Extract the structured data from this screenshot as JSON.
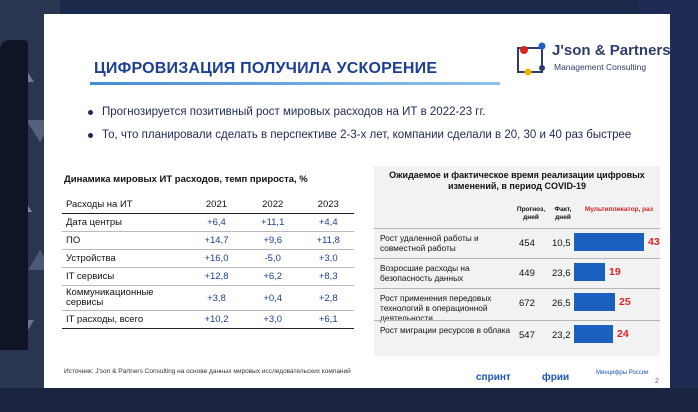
{
  "slide": {
    "title": "ЦИФРОВИЗАЦИЯ ПОЛУЧИЛА УСКОРЕНИЕ",
    "logo": {
      "name": "J'son & Partners",
      "subtitle": "Management Consulting"
    },
    "bullets": [
      "Прогнозируется позитивный рост мировых расходов на ИТ в 2022-23 гг.",
      "То, что планировали сделать в перспективе 2-3-х лет, компании сделали в 20, 30 и 40 раз быстрее"
    ],
    "table": {
      "title": "Динамика мировых ИТ расходов, темп прироста, %",
      "header": [
        "Расходы на ИТ",
        "2021",
        "2022",
        "2023"
      ],
      "rows": [
        [
          "Дата центры",
          "+6,4",
          "+11,1",
          "+4,4"
        ],
        [
          "ПО",
          "+14,7",
          "+9,6",
          "+11,8"
        ],
        [
          "Устройства",
          "+16,0",
          "-5,0",
          "+3,0"
        ],
        [
          "IT сервисы",
          "+12,8",
          "+6,2",
          "+8,3"
        ],
        [
          "Коммуникационные сервисы",
          "+3,8",
          "+0,4",
          "+2,8"
        ],
        [
          "IT расходы, всего",
          "+10,2",
          "+3,0",
          "+6,1"
        ]
      ]
    },
    "panel": {
      "title": "Ожидаемое и фактическое время реализации цифровых изменений, в период COVID-19",
      "col_forecast": "Прогноз, дней",
      "col_fact": "Факт, дней",
      "col_multiplier": "Мультипликатор, раз",
      "rows": [
        {
          "label": "Рост удаленной работы и совместной работы",
          "forecast": "454",
          "fact": "10,5",
          "multiplier": 43
        },
        {
          "label": "Возросшие расходы на безопасность данных",
          "forecast": "449",
          "fact": "23,6",
          "multiplier": 19
        },
        {
          "label": "Рост применения передовых технологий в операционной деятельности",
          "forecast": "672",
          "fact": "26,5",
          "multiplier": 25
        },
        {
          "label": "Рост миграции ресурсов в облака",
          "forecast": "547",
          "fact": "23,2",
          "multiplier": 24
        }
      ],
      "bar_color": "#1b5fbf"
    },
    "source": "Источник: J'son & Partners Consulting на основе данных мировых исследовательских компаний",
    "footer_logos": [
      "спринт",
      "фрии",
      "Минцифры России"
    ],
    "page_number": "2"
  }
}
